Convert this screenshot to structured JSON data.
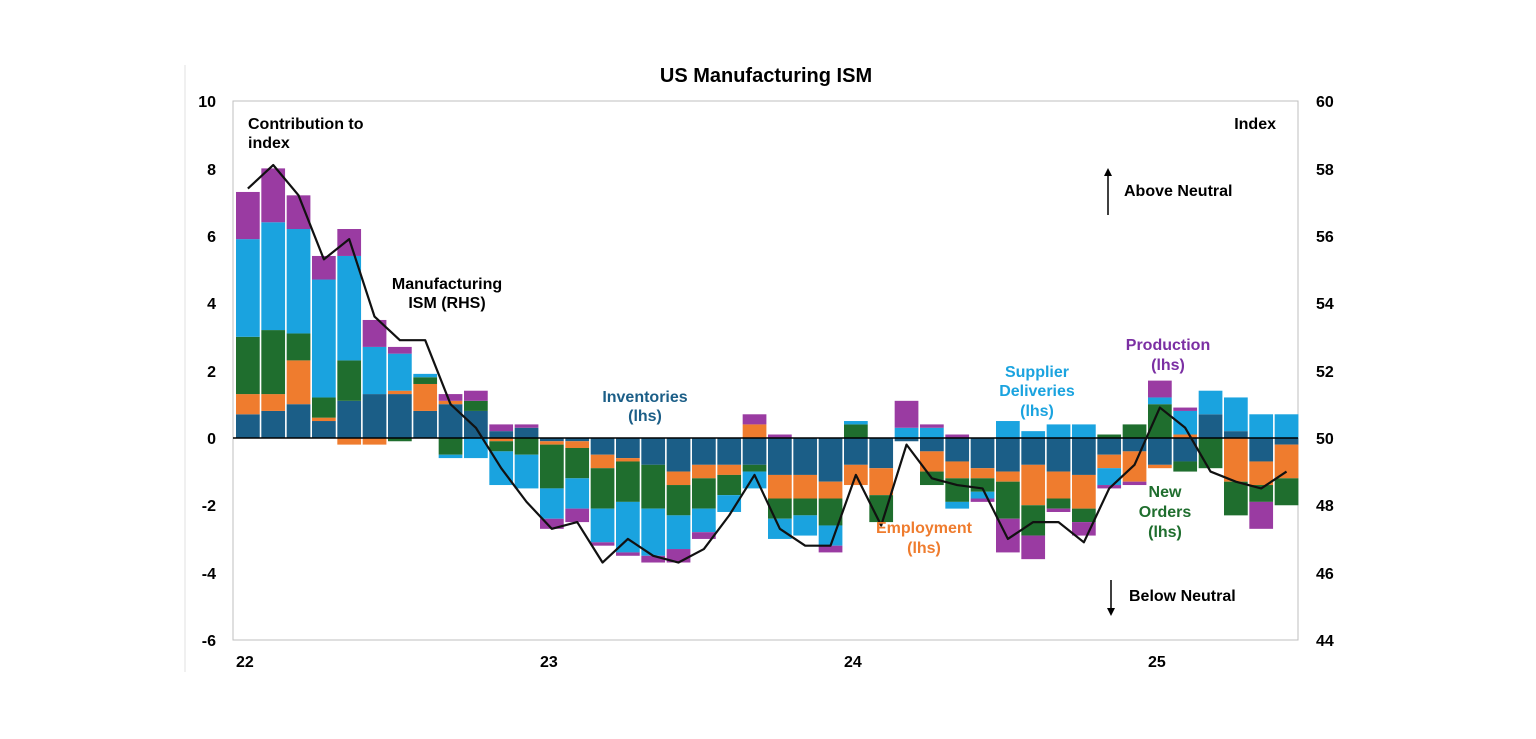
{
  "chart_data": {
    "type": "bar",
    "subtype": "stacked-bar-with-line",
    "title": "US Manufacturing ISM",
    "left_axis_label": "Contribution to index",
    "right_axis_label": "Index",
    "ylim_left": [
      -6,
      10
    ],
    "ylim_right": [
      44,
      60
    ],
    "left_ticks": [
      "10",
      "8",
      "6",
      "4",
      "2",
      "0",
      "-2",
      "-4",
      "-6"
    ],
    "right_ticks": [
      "60",
      "58",
      "56",
      "54",
      "52",
      "50",
      "48",
      "46",
      "44"
    ],
    "x_tick_labels": [
      "22",
      "23",
      "24",
      "25"
    ],
    "months": [
      "2022-01",
      "2022-02",
      "2022-03",
      "2022-04",
      "2022-05",
      "2022-06",
      "2022-07",
      "2022-08",
      "2022-09",
      "2022-10",
      "2022-11",
      "2022-12",
      "2023-01",
      "2023-02",
      "2023-03",
      "2023-04",
      "2023-05",
      "2023-06",
      "2023-07",
      "2023-08",
      "2023-09",
      "2023-10",
      "2023-11",
      "2023-12",
      "2024-01",
      "2024-02",
      "2024-03",
      "2024-04",
      "2024-05",
      "2024-06",
      "2024-07",
      "2024-08",
      "2024-09",
      "2024-10",
      "2024-11",
      "2024-12",
      "2025-01",
      "2025-02",
      "2025-03",
      "2025-04",
      "2025-05",
      "2025-06"
    ],
    "series": [
      {
        "name": "Inventories (lhs)",
        "color": "#1b5e87",
        "values": [
          0.7,
          0.8,
          1.0,
          0.5,
          1.1,
          1.3,
          1.3,
          0.8,
          1.0,
          0.8,
          0.2,
          0.3,
          -0.1,
          -0.1,
          -0.5,
          -0.6,
          -0.8,
          -1.0,
          -0.8,
          -0.8,
          -0.8,
          -1.1,
          -1.1,
          -1.3,
          -0.8,
          -0.9,
          -0.1,
          -0.4,
          -0.7,
          -0.9,
          -1.0,
          -0.8,
          -1.0,
          -1.1,
          -0.5,
          -0.4,
          -0.8,
          -0.7,
          0.7,
          0.2,
          -0.7,
          -0.2
        ]
      },
      {
        "name": "Employment (lhs)",
        "color": "#ef7c2e",
        "values": [
          0.6,
          0.5,
          1.3,
          0.1,
          -0.2,
          -0.2,
          0.1,
          0.8,
          0.1,
          0.0,
          -0.1,
          0.0,
          -0.1,
          -0.2,
          -0.4,
          -0.1,
          0.0,
          -0.4,
          -0.4,
          -0.3,
          0.4,
          -0.7,
          -0.7,
          -0.5,
          -0.6,
          -0.8,
          0.0,
          -0.6,
          -0.5,
          -0.3,
          -0.3,
          -1.2,
          -0.8,
          -1.0,
          -0.4,
          -0.9,
          -0.1,
          0.1,
          0.0,
          -1.3,
          -0.7,
          -1.0
        ]
      },
      {
        "name": "New Orders (lhs)",
        "color": "#1f6e2e",
        "values": [
          1.7,
          1.9,
          0.8,
          0.6,
          1.2,
          0.0,
          -0.1,
          0.2,
          -0.5,
          0.3,
          -0.3,
          -0.5,
          -1.3,
          -0.9,
          -1.2,
          -1.2,
          -1.3,
          -0.9,
          -0.9,
          -0.6,
          -0.2,
          -0.6,
          -0.5,
          -0.8,
          0.4,
          -0.8,
          0.0,
          -0.4,
          -0.7,
          -0.4,
          -1.1,
          -0.9,
          -0.3,
          -0.4,
          0.1,
          0.4,
          1.0,
          -0.3,
          -0.9,
          -1.0,
          -0.5,
          -0.8
        ]
      },
      {
        "name": "Supplier Deliveries (lhs)",
        "color": "#1aa3df",
        "values": [
          2.9,
          3.2,
          3.1,
          3.5,
          3.1,
          1.4,
          1.1,
          0.1,
          -0.1,
          -0.6,
          -1.0,
          -1.0,
          -0.9,
          -0.9,
          -1.0,
          -1.5,
          -1.4,
          -1.0,
          -0.7,
          -0.5,
          -0.5,
          -0.6,
          -0.6,
          -0.6,
          0.1,
          0.0,
          0.3,
          0.3,
          -0.2,
          -0.2,
          0.5,
          0.2,
          0.4,
          0.4,
          -0.5,
          0.0,
          0.2,
          0.7,
          0.7,
          1.0,
          0.7,
          0.7
        ]
      },
      {
        "name": "Production (lhs)",
        "color": "#9a3ba2",
        "values": [
          1.4,
          1.6,
          1.0,
          0.7,
          0.8,
          0.8,
          0.2,
          0.0,
          0.2,
          0.3,
          0.2,
          0.1,
          -0.3,
          -0.4,
          -0.1,
          -0.1,
          -0.2,
          -0.4,
          -0.2,
          0.0,
          0.3,
          0.1,
          0.0,
          -0.2,
          0.0,
          0.0,
          0.8,
          0.1,
          0.1,
          -0.1,
          -1.0,
          -0.7,
          -0.1,
          -0.4,
          -0.1,
          -0.1,
          0.5,
          0.1,
          0.0,
          0.0,
          -0.8,
          0.0
        ]
      }
    ],
    "line": {
      "name": "Manufacturing ISM (RHS)",
      "color": "#111111",
      "values": [
        57.4,
        58.1,
        57.2,
        55.3,
        55.9,
        53.6,
        52.9,
        52.9,
        51.0,
        50.3,
        49.1,
        48.1,
        47.3,
        47.5,
        46.3,
        47.0,
        46.5,
        46.3,
        46.7,
        47.7,
        48.9,
        47.3,
        46.8,
        46.8,
        48.9,
        47.4,
        49.8,
        48.8,
        48.6,
        48.5,
        47.0,
        47.5,
        47.5,
        46.9,
        48.5,
        49.2,
        50.9,
        50.3,
        49.0,
        48.7,
        48.5,
        49.0
      ]
    },
    "annotations": {
      "manufacturing_l1": "Manufacturing",
      "manufacturing_l2": "ISM (RHS)",
      "inventories_l1": "Inventories",
      "inventories_l2": "(lhs)",
      "supplier_l1": "Supplier",
      "supplier_l2": "Deliveries",
      "supplier_l3": "(lhs)",
      "production_l1": "Production",
      "production_l2": "(lhs)",
      "employment_l1": "Employment",
      "employment_l2": "(lhs)",
      "neworders_l1": "New",
      "neworders_l2": "Orders",
      "neworders_l3": "(lhs)",
      "above_neutral": "Above Neutral",
      "below_neutral": "Below Neutral",
      "contribution_l1": "Contribution to",
      "contribution_l2": "index"
    }
  }
}
